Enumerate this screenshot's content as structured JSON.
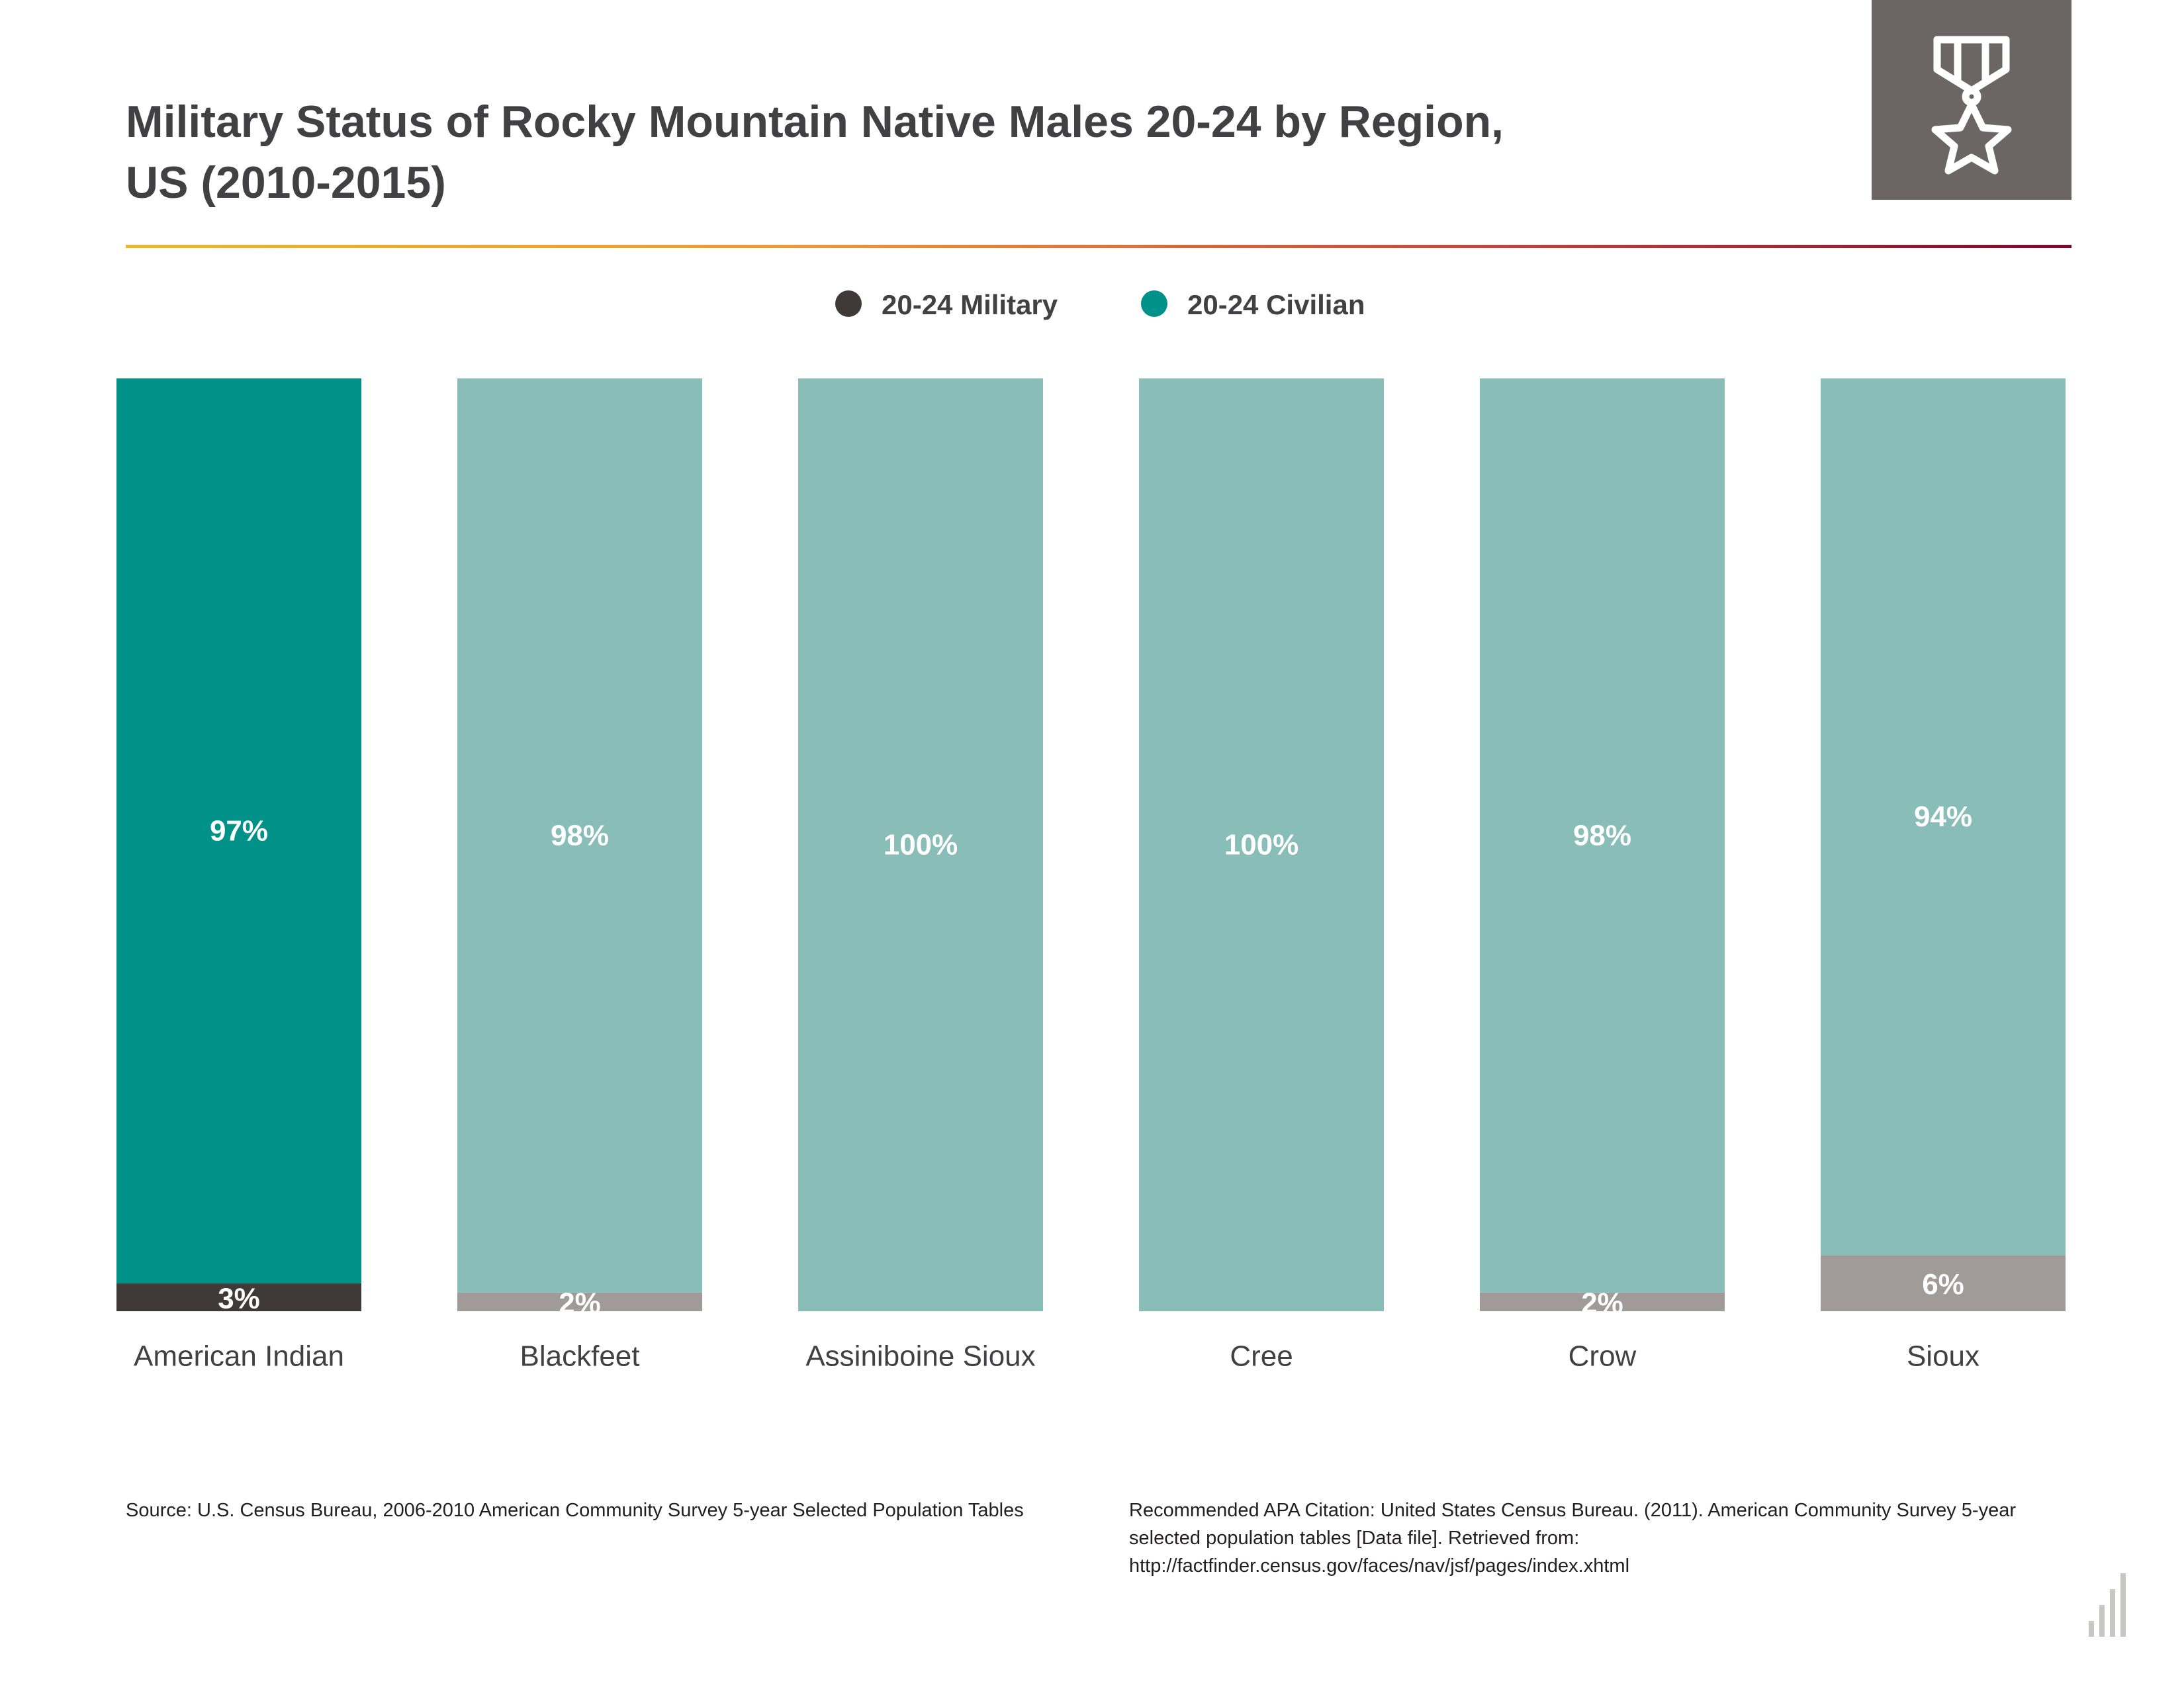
{
  "title": {
    "line1": "Military Status of Rocky Mountain Native Males 20-24 by Region,",
    "line2": "US (2010-2015)"
  },
  "icon": {
    "name": "medal-star-icon",
    "background": "#6c6566"
  },
  "legend": [
    {
      "label": "20-24 Military",
      "color": "#3f3a38"
    },
    {
      "label": "20-24 Civilian",
      "color": "#009188"
    }
  ],
  "chart_data": {
    "type": "bar",
    "stacked": true,
    "categories": [
      "American Indian",
      "Blackfeet",
      "Assiniboine Sioux",
      "Cree",
      "Crow",
      "Sioux"
    ],
    "series": [
      {
        "name": "20-24 Military",
        "values": [
          3,
          2,
          0,
          0,
          2,
          6
        ],
        "labels": [
          "3%",
          "2%",
          "",
          "",
          "2%",
          "6%"
        ]
      },
      {
        "name": "20-24 Civilian",
        "values": [
          97,
          98,
          100,
          100,
          98,
          94
        ],
        "labels": [
          "97%",
          "98%",
          "100%",
          "100%",
          "98%",
          "94%"
        ]
      }
    ],
    "ylim": [
      0,
      100
    ],
    "grid": false,
    "legend_position": "top-center",
    "colors": {
      "military_highlight": "#3f3a38",
      "civilian_highlight": "#009188",
      "military": "#a09a99",
      "civilian": "#89bdb7"
    },
    "highlight_index": 0
  },
  "footer": {
    "source": "Source:  U.S. Census Bureau, 2006-2010 American Community Survey 5-year Selected Population Tables",
    "citation": "Recommended APA Citation: United States Census Bureau. (2011). American Community Survey 5-year selected population tables [Data file]. Retrieved from: http://factfinder.census.gov/faces/nav/jsf/pages/index.xhtml"
  },
  "brand": {
    "name": "bar-steps-logo-icon",
    "color": "#c9c7c6"
  }
}
